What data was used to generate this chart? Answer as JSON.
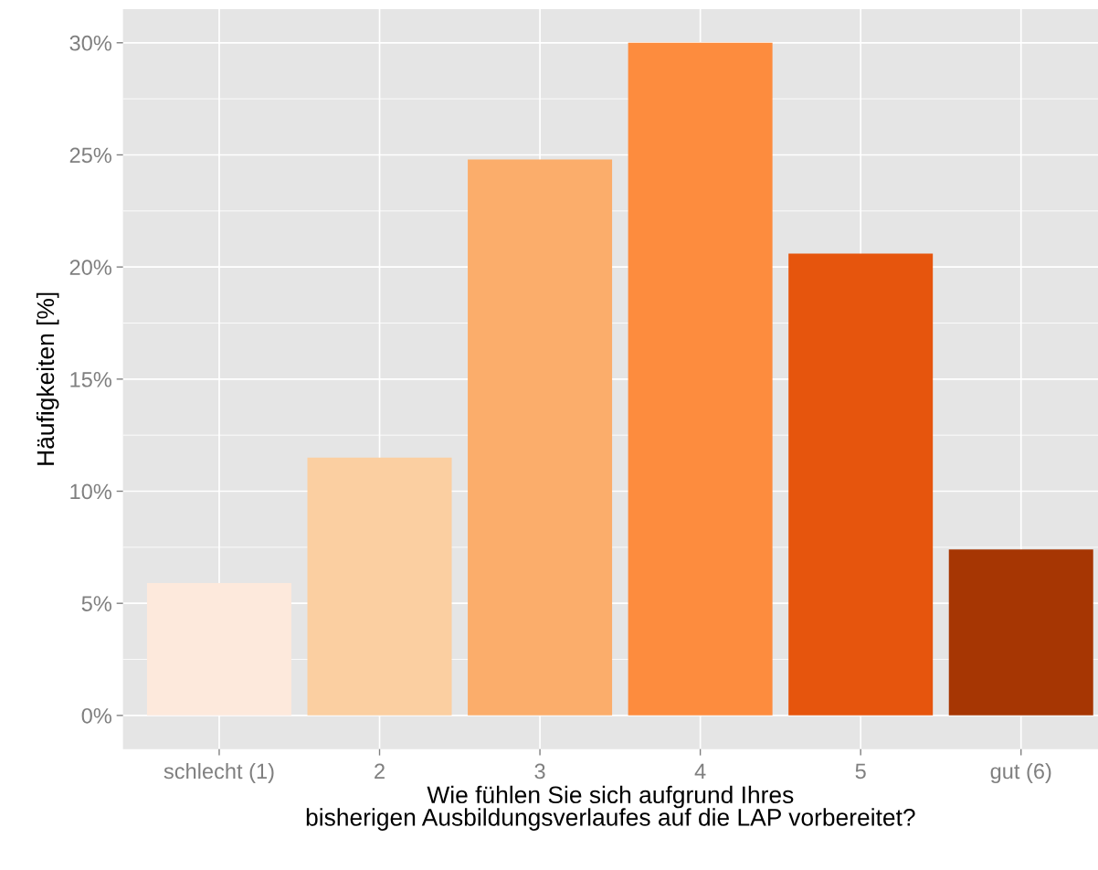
{
  "chart_data": {
    "type": "bar",
    "xlabel": "Wie fühlen Sie sich aufgrund Ihres\nbisherigen Ausbildungsverlaufes auf die LAP vorbereitet?",
    "ylabel": "Häufigkeiten [%]",
    "categories": [
      "schlecht (1)",
      "2",
      "3",
      "4",
      "5",
      "gut (6)"
    ],
    "values": [
      5.9,
      11.5,
      24.8,
      30.0,
      20.6,
      7.4
    ],
    "colors": [
      "#fde9dc",
      "#fbcfa1",
      "#fbad6b",
      "#fd8c3e",
      "#e6550d",
      "#a63603"
    ],
    "ylim": [
      -1.5,
      31.5
    ],
    "yticks": [
      {
        "value": 0,
        "label": "0%"
      },
      {
        "value": 5,
        "label": "5%"
      },
      {
        "value": 10,
        "label": "10%"
      },
      {
        "value": 15,
        "label": "15%"
      },
      {
        "value": 20,
        "label": "20%"
      },
      {
        "value": 25,
        "label": "25%"
      },
      {
        "value": 30,
        "label": "30%"
      }
    ],
    "grid": true
  }
}
